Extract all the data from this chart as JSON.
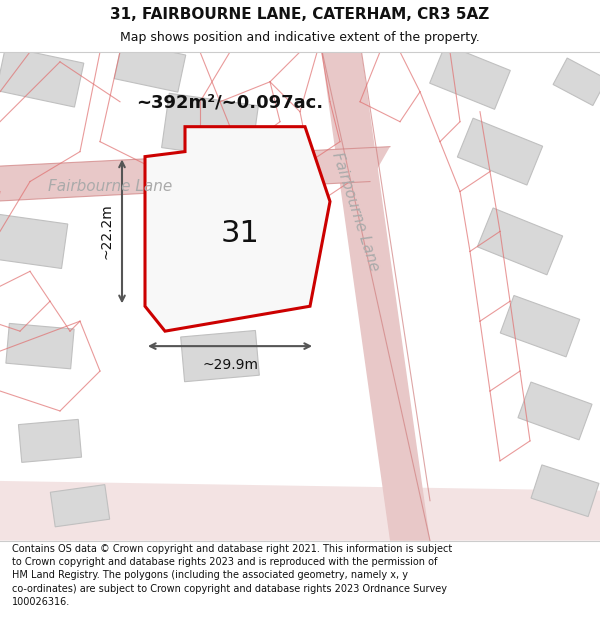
{
  "title": "31, FAIRBOURNE LANE, CATERHAM, CR3 5AZ",
  "subtitle": "Map shows position and indicative extent of the property.",
  "footer": "Contains OS data © Crown copyright and database right 2021. This information is subject\nto Crown copyright and database rights 2023 and is reproduced with the permission of\nHM Land Registry. The polygons (including the associated geometry, namely x, y\nco-ordinates) are subject to Crown copyright and database rights 2023 Ordnance Survey\n100026316.",
  "area_label": "~392m²/~0.097ac.",
  "number_label": "31",
  "width_label": "~29.9m",
  "height_label": "~22.2m",
  "road_label_h": "Fairbourne Lane",
  "road_label_v": "Fairbourne Lane",
  "map_bg": "#efefef",
  "road_fill": "#e8c8c8",
  "road_outline": "#d08080",
  "building_fill": "#d8d8d8",
  "building_edge": "#c0c0c0",
  "plot_fill": "#f8f8f8",
  "plot_edge": "#cc0000",
  "plot_lw": 2.2,
  "dim_color": "#555555",
  "title_fs": 11,
  "subtitle_fs": 9,
  "footer_fs": 7,
  "area_fs": 13,
  "number_fs": 22,
  "road_fs": 11,
  "dim_fs": 10
}
